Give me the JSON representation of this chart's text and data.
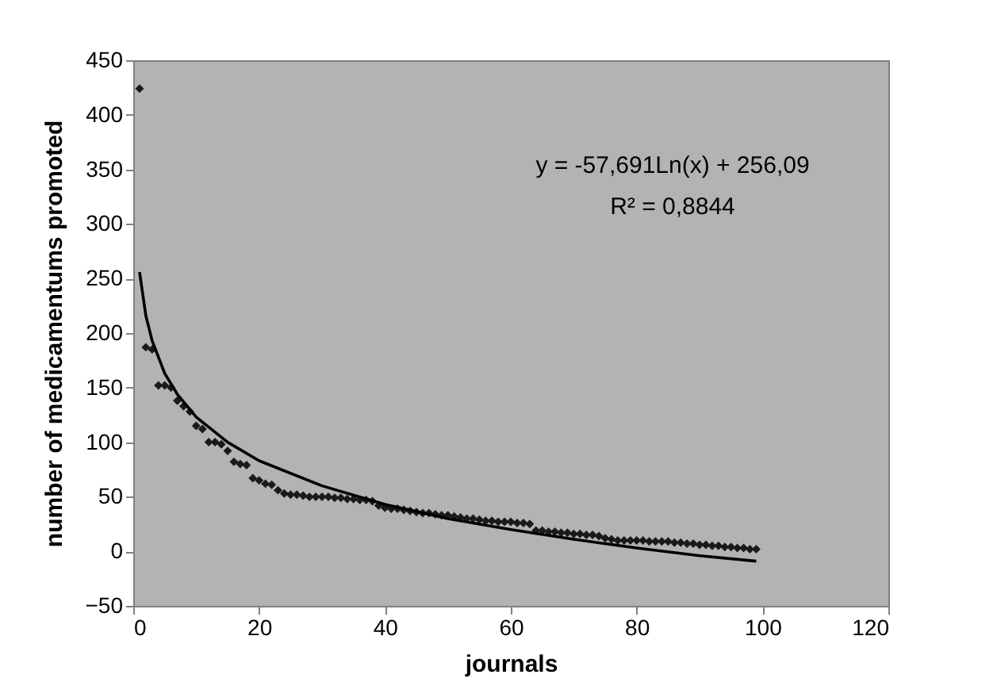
{
  "chart_data": {
    "type": "scatter",
    "xlabel": "journals",
    "ylabel": "number of medicamentums promoted",
    "annotations": [
      "y = -57,691Ln(x) + 256,09",
      "R² = 0,8844"
    ],
    "xlim": [
      0,
      120
    ],
    "xticks": [
      0,
      20,
      40,
      60,
      80,
      100,
      120
    ],
    "ylim": [
      -50,
      450
    ],
    "yticks": [
      -50,
      0,
      50,
      100,
      150,
      200,
      250,
      300,
      350,
      400,
      450
    ],
    "grid": false,
    "marker": "diamond",
    "x": [
      1,
      2,
      3,
      4,
      5,
      6,
      7,
      8,
      9,
      10,
      11,
      12,
      13,
      14,
      15,
      16,
      17,
      18,
      19,
      20,
      21,
      22,
      23,
      24,
      25,
      26,
      27,
      28,
      29,
      30,
      31,
      32,
      33,
      34,
      35,
      36,
      37,
      38,
      39,
      40,
      41,
      42,
      43,
      44,
      45,
      46,
      47,
      48,
      49,
      50,
      51,
      52,
      53,
      54,
      55,
      56,
      57,
      58,
      59,
      60,
      61,
      62,
      63,
      64,
      65,
      66,
      67,
      68,
      69,
      70,
      71,
      72,
      73,
      74,
      75,
      76,
      77,
      78,
      79,
      80,
      81,
      82,
      83,
      84,
      85,
      86,
      87,
      88,
      89,
      90,
      91,
      92,
      93,
      94,
      95,
      96,
      97,
      98,
      99
    ],
    "series": [
      {
        "color": "#1a1a1a",
        "values": [
          424,
          187,
          185,
          152,
          152,
          150,
          138,
          133,
          128,
          115,
          112,
          100,
          100,
          98,
          92,
          82,
          80,
          79,
          67,
          65,
          62,
          61,
          56,
          53,
          52,
          52,
          51,
          50,
          50,
          50,
          50,
          49,
          49,
          48,
          48,
          47,
          47,
          46,
          42,
          40,
          39,
          39,
          38,
          37,
          36,
          35,
          35,
          34,
          33,
          33,
          32,
          31,
          30,
          30,
          29,
          28,
          28,
          27,
          27,
          27,
          26,
          26,
          25,
          19,
          19,
          18,
          18,
          17,
          17,
          16,
          16,
          15,
          15,
          14,
          12,
          11,
          10,
          10,
          10,
          10,
          10,
          9,
          9,
          9,
          9,
          8,
          8,
          7,
          7,
          6,
          6,
          5,
          5,
          4,
          4,
          3,
          3,
          2,
          2
        ]
      },
      {
        "type": "line",
        "color": "#000000",
        "marker": "none",
        "x": [
          1,
          2,
          3,
          5,
          7,
          10,
          15,
          20,
          30,
          40,
          50,
          60,
          70,
          80,
          90,
          99
        ],
        "values": [
          256,
          216,
          193,
          163,
          144,
          123,
          100,
          83,
          60,
          43,
          30,
          20,
          11,
          3,
          -4,
          -9
        ]
      }
    ]
  }
}
